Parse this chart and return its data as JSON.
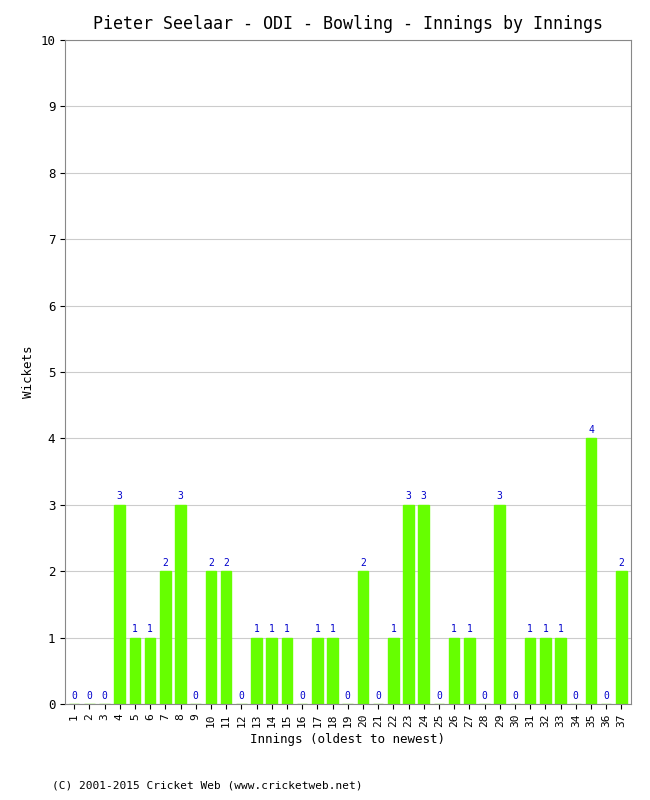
{
  "title": "Pieter Seelaar - ODI - Bowling - Innings by Innings",
  "xlabel": "Innings (oldest to newest)",
  "ylabel": "Wickets",
  "footer": "(C) 2001-2015 Cricket Web (www.cricketweb.net)",
  "innings": [
    1,
    2,
    3,
    4,
    5,
    6,
    7,
    8,
    9,
    10,
    11,
    12,
    13,
    14,
    15,
    16,
    17,
    18,
    19,
    20,
    21,
    22,
    23,
    24,
    25,
    26,
    27,
    28,
    29,
    30,
    31,
    32,
    33,
    34,
    35,
    36,
    37
  ],
  "wickets": [
    0,
    0,
    0,
    3,
    1,
    1,
    2,
    3,
    0,
    2,
    2,
    0,
    1,
    1,
    1,
    0,
    1,
    1,
    0,
    2,
    0,
    1,
    3,
    3,
    0,
    1,
    1,
    0,
    3,
    0,
    1,
    1,
    1,
    0,
    4,
    0,
    2
  ],
  "bar_color": "#66ff00",
  "label_color": "#0000cc",
  "background_color": "#ffffff",
  "ylim": [
    0,
    10
  ],
  "yticks": [
    0,
    1,
    2,
    3,
    4,
    5,
    6,
    7,
    8,
    9,
    10
  ],
  "grid_color": "#cccccc",
  "title_fontsize": 12,
  "axis_label_fontsize": 9,
  "tick_label_fontsize": 8,
  "bar_label_fontsize": 7
}
